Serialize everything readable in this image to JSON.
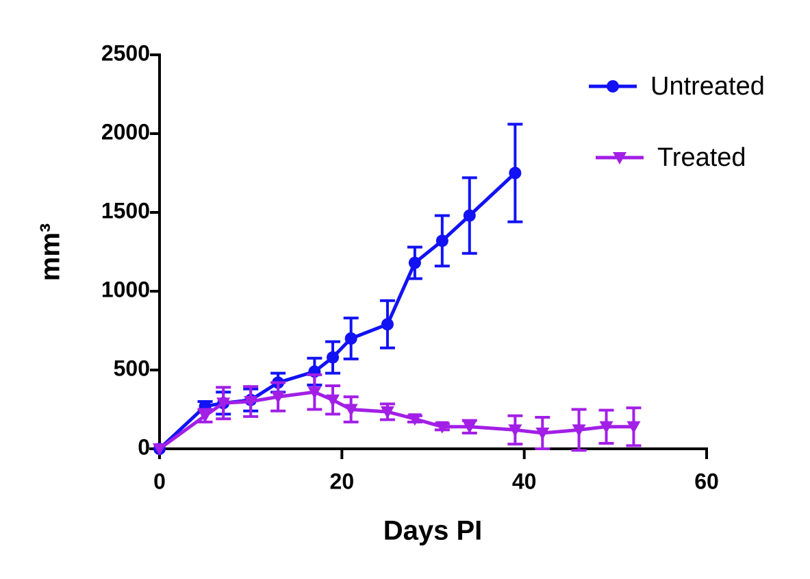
{
  "chart_data": {
    "type": "line",
    "x_label": "Days PI",
    "y_label": "mm³",
    "xlim": [
      0,
      60
    ],
    "xticks": [
      0,
      20,
      40,
      60
    ],
    "ylim": [
      0,
      2500
    ],
    "yticks": [
      0,
      500,
      1000,
      1500,
      2000,
      2500
    ],
    "legend": "top-right",
    "series": [
      {
        "name": "Untreated",
        "color": "#1212f5",
        "marker": "circle",
        "x": [
          0,
          5,
          7,
          10,
          13,
          17,
          19,
          21,
          25,
          28,
          31,
          34,
          39
        ],
        "values": [
          0,
          270,
          290,
          310,
          420,
          490,
          580,
          700,
          790,
          1180,
          1320,
          1480,
          1750
        ],
        "errors": [
          0,
          30,
          70,
          70,
          60,
          85,
          100,
          130,
          150,
          100,
          160,
          240,
          310
        ]
      },
      {
        "name": "Treated",
        "color": "#a21fe6",
        "marker": "triangle-down",
        "x": [
          0,
          5,
          7,
          10,
          13,
          17,
          19,
          21,
          25,
          28,
          31,
          34,
          39,
          42,
          46,
          49,
          52
        ],
        "values": [
          0,
          210,
          290,
          300,
          330,
          360,
          310,
          250,
          235,
          190,
          140,
          140,
          120,
          100,
          120,
          140,
          140
        ],
        "errors": [
          0,
          40,
          100,
          95,
          90,
          110,
          90,
          80,
          50,
          20,
          20,
          40,
          90,
          100,
          130,
          105,
          120
        ]
      }
    ]
  }
}
